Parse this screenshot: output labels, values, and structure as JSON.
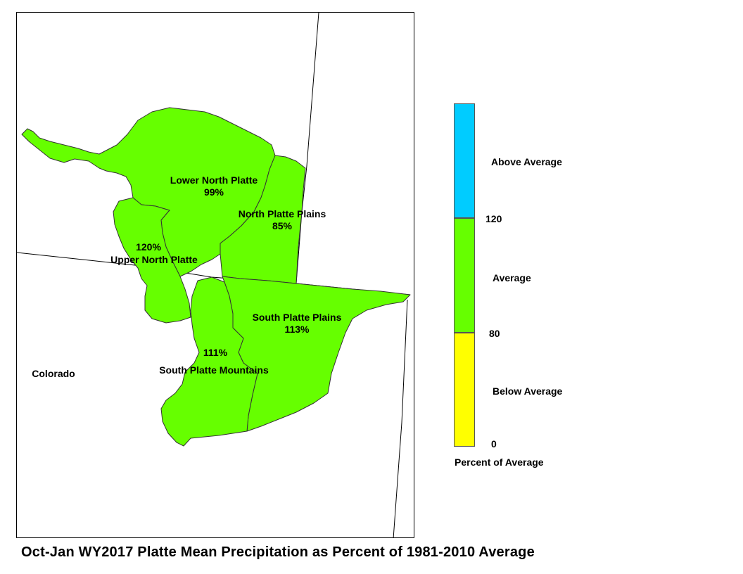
{
  "map": {
    "state_label": "Colorado",
    "basins": [
      {
        "name": "Lower North Platte",
        "percent": "99%"
      },
      {
        "name": "North Platte Plains",
        "percent": "85%"
      },
      {
        "name": "Upper North Platte",
        "percent": "120%"
      },
      {
        "name": "South Platte Plains",
        "percent": "113%"
      },
      {
        "name": "South Platte Mountains",
        "percent": "111%"
      }
    ],
    "fill_color": "#66ff00",
    "outline_color": "#333333"
  },
  "legend": {
    "title": "Percent of Average",
    "classes": [
      {
        "label": "Above Average",
        "color": "#00ccff",
        "min": 120,
        "max": null
      },
      {
        "label": "Average",
        "color": "#66ff00",
        "min": 80,
        "max": 120
      },
      {
        "label": "Below Average",
        "color": "#ffff00",
        "min": 0,
        "max": 80
      }
    ],
    "breaks": [
      "120",
      "80",
      "0"
    ]
  },
  "title": "Oct-Jan WY2017 Platte Mean Precipitation as Percent of 1981-2010 Average"
}
